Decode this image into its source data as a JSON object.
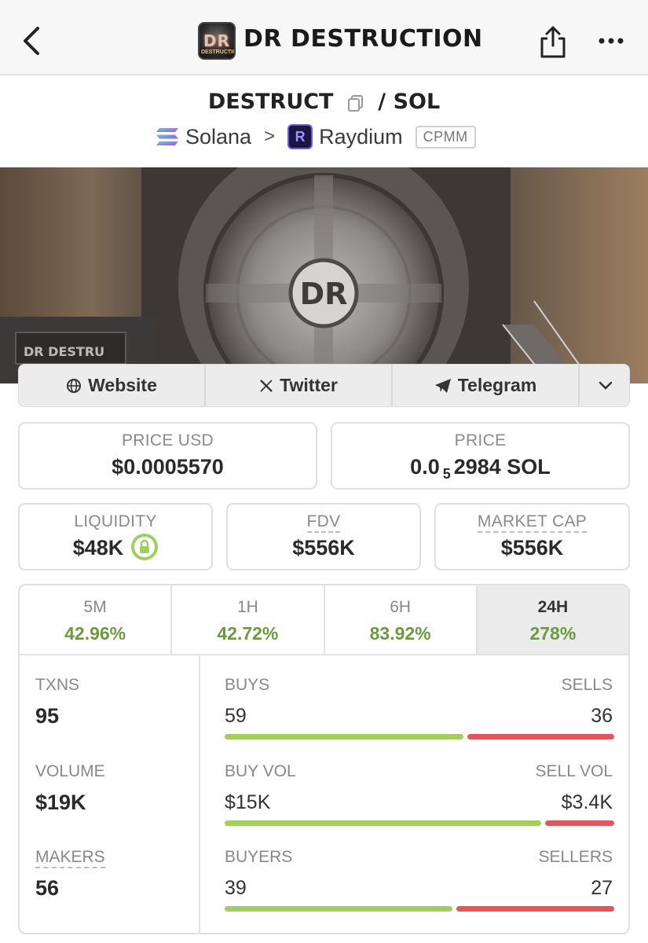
{
  "header": {
    "title": "DR DESTRUCTION",
    "logo_text": "DR",
    "logo_subtext": "DESTRUCTION"
  },
  "pair": {
    "base": "DESTRUCT",
    "separator": "/",
    "quote": "SOL",
    "chain": "Solana",
    "chevron": ">",
    "dex": "Raydium",
    "dex_icon_letter": "R",
    "pool_type": "CPMM"
  },
  "banner": {
    "vault_text": "DR",
    "train_text": "DR DESTRU"
  },
  "links": {
    "website": "Website",
    "twitter": "Twitter",
    "telegram": "Telegram"
  },
  "stats": {
    "price_usd_label": "PRICE USD",
    "price_usd": "$0.0005570",
    "price_label": "PRICE",
    "price_prefix": "0.0",
    "price_subscript": "5",
    "price_suffix": "2984 SOL",
    "liquidity_label": "LIQUIDITY",
    "liquidity": "$48K",
    "fdv_label": "FDV",
    "fdv": "$556K",
    "mcap_label": "MARKET CAP",
    "mcap": "$556K"
  },
  "tabs": [
    {
      "label": "5M",
      "value": "42.96%"
    },
    {
      "label": "1H",
      "value": "42.72%"
    },
    {
      "label": "6H",
      "value": "83.92%"
    },
    {
      "label": "24H",
      "value": "278%"
    }
  ],
  "active_tab": "24H",
  "txns": {
    "txns_label": "TXNS",
    "txns": "95",
    "volume_label": "VOLUME",
    "volume": "$19K",
    "makers_label": "MAKERS",
    "makers": "56",
    "buys_label": "BUYS",
    "buys": "59",
    "sells_label": "SELLS",
    "sells": "36",
    "buy_vol_label": "BUY VOL",
    "buy_vol": "$15K",
    "sell_vol_label": "SELL VOL",
    "sell_vol": "$3.4K",
    "buyers_label": "BUYERS",
    "buyers": "39",
    "sellers_label": "SELLERS",
    "sellers": "27"
  },
  "bar_ratios": {
    "buys_fraction": 0.62,
    "buy_vol_fraction": 0.82,
    "buyers_fraction": 0.59
  },
  "colors": {
    "positive": "#6e9a3e",
    "buy_bar": "#a3cc62",
    "sell_bar": "#e0585a"
  }
}
